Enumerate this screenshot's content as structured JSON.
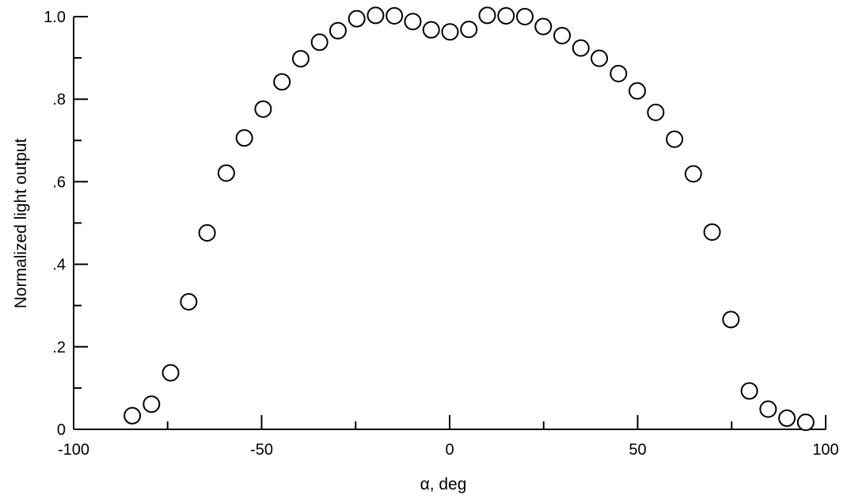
{
  "chart_data": {
    "type": "scatter",
    "title": "",
    "xlabel": "α, deg",
    "ylabel": "Normalized light output",
    "xlim": [
      -100,
      100
    ],
    "ylim": [
      0,
      1.0
    ],
    "grid": false,
    "legend": "none",
    "marker": "open-circle",
    "x_ticks": [
      {
        "value": -100,
        "label": "-100"
      },
      {
        "value": -50,
        "label": "-50"
      },
      {
        "value": 0,
        "label": "0"
      },
      {
        "value": 50,
        "label": "50"
      },
      {
        "value": 100,
        "label": "100"
      }
    ],
    "y_ticks": [
      {
        "value": 0,
        "label": "0"
      },
      {
        "value": 0.2,
        "label": ".2"
      },
      {
        "value": 0.4,
        "label": ".4"
      },
      {
        "value": 0.6,
        "label": ".6"
      },
      {
        "value": 0.8,
        "label": ".8"
      },
      {
        "value": 1.0,
        "label": "1.0"
      }
    ],
    "x_minor_ticks": [
      -75,
      -25,
      25,
      75
    ],
    "y_minor_ticks": [
      0.1,
      0.3,
      0.5,
      0.7,
      0.9
    ],
    "series": [
      {
        "x": [
          -84.4,
          -79.3,
          -74.2,
          -69.4,
          -64.5,
          -59.4,
          -54.6,
          -49.6,
          -44.6,
          -39.6,
          -34.6,
          -29.7,
          -24.7,
          -19.7,
          -14.7,
          -9.8,
          -4.9,
          0.1,
          5.1,
          10.0,
          15.0,
          20.0,
          24.9,
          29.9,
          34.9,
          39.8,
          44.9,
          49.9,
          54.8,
          59.8,
          64.8,
          69.8,
          74.8,
          79.7,
          84.7,
          89.7,
          94.7
        ],
        "y": [
          0.033,
          0.061,
          0.137,
          0.309,
          0.476,
          0.621,
          0.706,
          0.776,
          0.842,
          0.898,
          0.938,
          0.966,
          0.995,
          1.003,
          1.002,
          0.988,
          0.968,
          0.963,
          0.969,
          1.003,
          1.002,
          1.0,
          0.976,
          0.954,
          0.924,
          0.899,
          0.862,
          0.82,
          0.768,
          0.703,
          0.619,
          0.478,
          0.266,
          0.093,
          0.049,
          0.027,
          0.017
        ]
      }
    ]
  }
}
